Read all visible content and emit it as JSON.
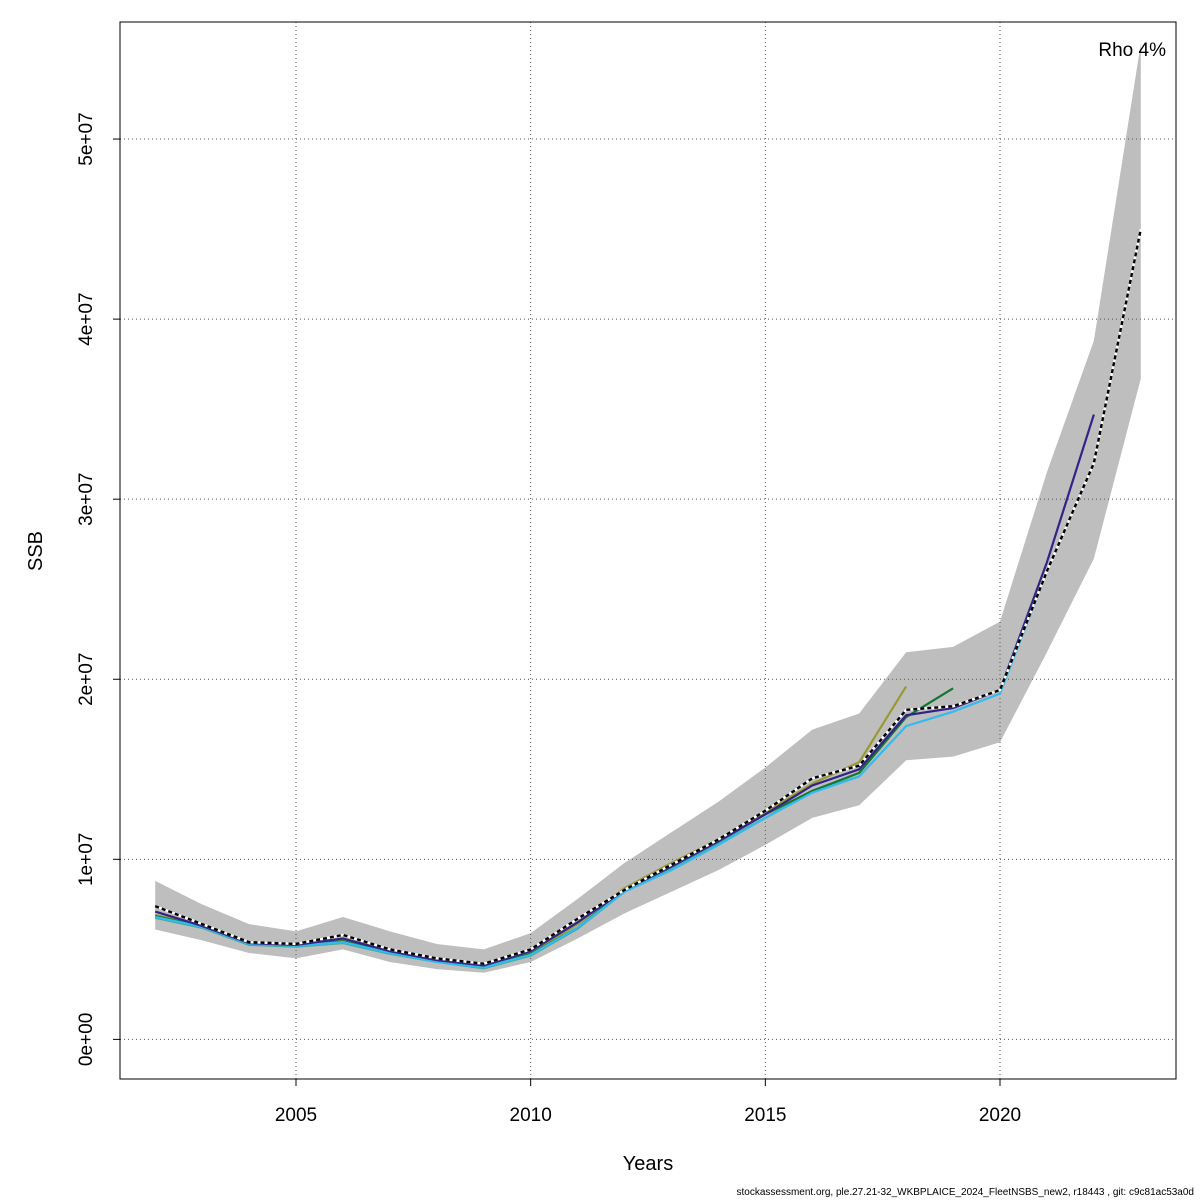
{
  "chart_data": {
    "type": "line",
    "xlabel": "Years",
    "ylabel": "SSB",
    "xlim": [
      2001.25,
      2023.75
    ],
    "ylim": [
      -2200000,
      56500000
    ],
    "x_ticks": [
      2005,
      2010,
      2015,
      2020
    ],
    "x_tick_labels": [
      "2005",
      "2010",
      "2015",
      "2020"
    ],
    "y_ticks": [
      0,
      10000000,
      20000000,
      30000000,
      40000000,
      50000000
    ],
    "y_tick_labels": [
      "0e+00",
      "1e+07",
      "2e+07",
      "3e+07",
      "4e+07",
      "5e+07"
    ],
    "grid": true,
    "annotation": "Rho 4%",
    "confidence_band": {
      "x": [
        2002,
        2003,
        2004,
        2005,
        2006,
        2007,
        2008,
        2009,
        2010,
        2011,
        2012,
        2013,
        2014,
        2015,
        2016,
        2017,
        2018,
        2019,
        2020,
        2021,
        2022,
        2023
      ],
      "upper": [
        8800000,
        7500000,
        6400000,
        6000000,
        6800000,
        6000000,
        5300000,
        5000000,
        5900000,
        7800000,
        9800000,
        11500000,
        13200000,
        15100000,
        17200000,
        18100000,
        21500000,
        21800000,
        23200000,
        31500000,
        38800000,
        55300000
      ],
      "lower": [
        6100000,
        5500000,
        4800000,
        4500000,
        5000000,
        4300000,
        3900000,
        3700000,
        4300000,
        5600000,
        7000000,
        8200000,
        9400000,
        10800000,
        12300000,
        13000000,
        15500000,
        15700000,
        16500000,
        21500000,
        26700000,
        36700000
      ],
      "color": "#bebebe"
    },
    "series": [
      {
        "color": "#000000",
        "dashed": true,
        "x": [
          2002,
          2003,
          2004,
          2005,
          2006,
          2007,
          2008,
          2009,
          2010,
          2011,
          2012,
          2013,
          2014,
          2015,
          2016,
          2017,
          2018,
          2019,
          2020,
          2021,
          2022,
          2023
        ],
        "values": [
          7400000,
          6400000,
          5400000,
          5300000,
          5800000,
          5000000,
          4500000,
          4200000,
          5000000,
          6700000,
          8300000,
          9700000,
          11100000,
          12700000,
          14500000,
          15200000,
          18300000,
          18500000,
          19400000,
          26000000,
          32000000,
          45000000
        ]
      },
      {
        "color": "#332288",
        "x": [
          2002,
          2003,
          2004,
          2005,
          2006,
          2007,
          2008,
          2009,
          2010,
          2011,
          2012,
          2013,
          2014,
          2015,
          2016,
          2017,
          2018,
          2019,
          2020,
          2021,
          2022
        ],
        "values": [
          7100000,
          6300000,
          5350000,
          5250000,
          5600000,
          4900000,
          4400000,
          4100000,
          4900000,
          6500000,
          8300000,
          9600000,
          11000000,
          12500000,
          14100000,
          15000000,
          18000000,
          18400000,
          19400000,
          26500000,
          34700000
        ]
      },
      {
        "color": "#33BBEE",
        "x": [
          2002,
          2003,
          2004,
          2005,
          2006,
          2007,
          2008,
          2009,
          2010,
          2011,
          2012,
          2013,
          2014,
          2015,
          2016,
          2017,
          2018,
          2019,
          2020,
          2021
        ],
        "values": [
          6800000,
          6250000,
          5300000,
          5200000,
          5400000,
          4800000,
          4300000,
          4000000,
          4700000,
          6200000,
          8200000,
          9400000,
          10800000,
          12300000,
          13700000,
          14600000,
          17400000,
          18200000,
          19200000,
          26000000
        ]
      },
      {
        "color": "#117733",
        "x": [
          2002,
          2003,
          2004,
          2005,
          2006,
          2007,
          2008,
          2009,
          2010,
          2011,
          2012,
          2013,
          2014,
          2015,
          2016,
          2017,
          2018,
          2019
        ],
        "values": [
          6850000,
          6300000,
          5350000,
          5250000,
          5450000,
          4850000,
          4350000,
          4050000,
          4750000,
          6200000,
          8300000,
          9600000,
          11000000,
          12500000,
          13800000,
          14800000,
          17900000,
          19500000
        ]
      },
      {
        "color": "#999933",
        "x": [
          2002,
          2003,
          2004,
          2005,
          2006,
          2007,
          2008,
          2009,
          2010,
          2011,
          2012,
          2013,
          2014,
          2015,
          2016,
          2017,
          2018
        ],
        "values": [
          6900000,
          6350000,
          5400000,
          5300000,
          5500000,
          4900000,
          4400000,
          4100000,
          4800000,
          6400000,
          8400000,
          9800000,
          11100000,
          12600000,
          14200000,
          15400000,
          19600000
        ]
      },
      {
        "color": "#44AA99",
        "x": [
          2002,
          2003,
          2004,
          2005,
          2006,
          2007,
          2008,
          2009,
          2010,
          2011,
          2012,
          2013,
          2014,
          2015,
          2016,
          2017
        ],
        "values": [
          6750000,
          6200000,
          5250000,
          5150000,
          5350000,
          4750000,
          4300000,
          3950000,
          4650000,
          6150000,
          8200000,
          9500000,
          10900000,
          12300000,
          13800000,
          14600000
        ]
      }
    ]
  },
  "footer": "stockassessment.org, ple.27.21-32_WKBPLAICE_2024_FleetNSBS_new2, r18443 , git: c9c81ac53a0d"
}
